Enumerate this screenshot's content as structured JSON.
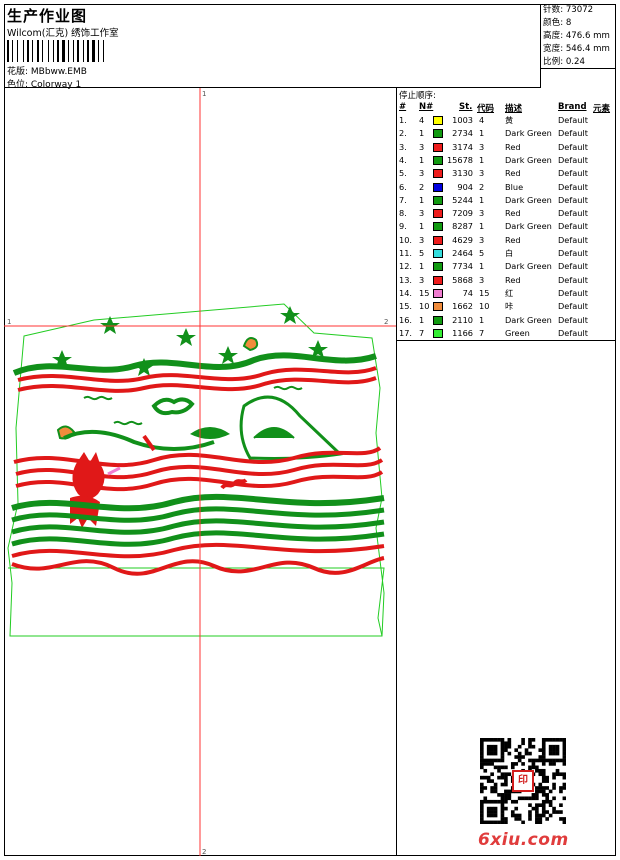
{
  "header": {
    "title": "生产作业图",
    "company": "Wilcom(汇克) 绣饰工作室",
    "design_file": "花版:  MBbww.EMB",
    "colorway": "色位:  Colorway 1"
  },
  "stats": {
    "stitches": "针数: 73072",
    "colors": "颜色: 8",
    "height": "高度: 476.6 mm",
    "width": "宽度: 546.4 mm",
    "scale": "比例: 0.24"
  },
  "stop_sequence": {
    "title": "停止顺序:",
    "headers": {
      "index": "#",
      "needle": "N#",
      "stitches": "St.",
      "code": "代码",
      "description": "描述",
      "brand": "Brand",
      "element": "元素"
    },
    "rows": [
      {
        "idx": "1.",
        "needle": "4",
        "color": "#ffff00",
        "st": "1003",
        "code": "4",
        "desc": "黄",
        "brand": "Default"
      },
      {
        "idx": "2.",
        "needle": "1",
        "color": "#119a11",
        "st": "2734",
        "code": "1",
        "desc": "Dark Green",
        "brand": "Default"
      },
      {
        "idx": "3.",
        "needle": "3",
        "color": "#ee1c1c",
        "st": "3174",
        "code": "3",
        "desc": "Red",
        "brand": "Default"
      },
      {
        "idx": "4.",
        "needle": "1",
        "color": "#119a11",
        "st": "15678",
        "code": "1",
        "desc": "Dark Green",
        "brand": "Default"
      },
      {
        "idx": "5.",
        "needle": "3",
        "color": "#ee1c1c",
        "st": "3130",
        "code": "3",
        "desc": "Red",
        "brand": "Default"
      },
      {
        "idx": "6.",
        "needle": "2",
        "color": "#0000e0",
        "st": "904",
        "code": "2",
        "desc": "Blue",
        "brand": "Default"
      },
      {
        "idx": "7.",
        "needle": "1",
        "color": "#119a11",
        "st": "5244",
        "code": "1",
        "desc": "Dark Green",
        "brand": "Default"
      },
      {
        "idx": "8.",
        "needle": "3",
        "color": "#ee1c1c",
        "st": "7209",
        "code": "3",
        "desc": "Red",
        "brand": "Default"
      },
      {
        "idx": "9.",
        "needle": "1",
        "color": "#119a11",
        "st": "8287",
        "code": "1",
        "desc": "Dark Green",
        "brand": "Default"
      },
      {
        "idx": "10.",
        "needle": "3",
        "color": "#ee1c1c",
        "st": "4629",
        "code": "3",
        "desc": "Red",
        "brand": "Default"
      },
      {
        "idx": "11.",
        "needle": "5",
        "color": "#33dddd",
        "st": "2464",
        "code": "5",
        "desc": "白",
        "brand": "Default"
      },
      {
        "idx": "12.",
        "needle": "1",
        "color": "#119a11",
        "st": "7734",
        "code": "1",
        "desc": "Dark Green",
        "brand": "Default"
      },
      {
        "idx": "13.",
        "needle": "3",
        "color": "#ee1c1c",
        "st": "5868",
        "code": "3",
        "desc": "Red",
        "brand": "Default"
      },
      {
        "idx": "14.",
        "needle": "15",
        "color": "#f07cd0",
        "st": "74",
        "code": "15",
        "desc": "红",
        "brand": "Default"
      },
      {
        "idx": "15.",
        "needle": "10",
        "color": "#f08c3c",
        "st": "1662",
        "code": "10",
        "desc": "咔",
        "brand": "Default"
      },
      {
        "idx": "16.",
        "needle": "1",
        "color": "#119a11",
        "st": "2110",
        "code": "1",
        "desc": "Dark Green",
        "brand": "Default"
      },
      {
        "idx": "17.",
        "needle": "7",
        "color": "#33ee33",
        "st": "1166",
        "code": "7",
        "desc": "Green",
        "brand": "Default"
      }
    ]
  },
  "canvas": {
    "axis_marks": {
      "top": "1",
      "bottom": "2",
      "left": "1",
      "right": "2"
    },
    "colors": {
      "red": "#e01818",
      "green": "#11901a",
      "outline": "#22cc22",
      "axis": "#ff3333"
    }
  },
  "footer": {
    "watermark": "6xiu.com",
    "stamp": "印"
  }
}
